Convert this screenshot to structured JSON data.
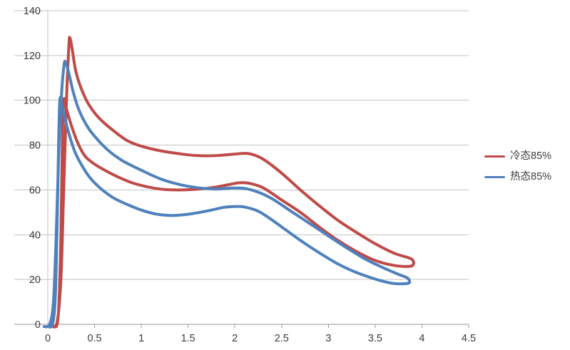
{
  "chart_data": {
    "type": "line",
    "title": "",
    "xlabel": "",
    "ylabel": "",
    "grid": "horizontal",
    "legend_position": "right",
    "x_axis": {
      "min": 0,
      "max": 4.5,
      "tick_step": 0.5,
      "tick_labels": [
        "0",
        "0.5",
        "1",
        "1.5",
        "2",
        "2.5",
        "3",
        "3.5",
        "4",
        "4.5"
      ]
    },
    "y_axis": {
      "min": 0,
      "max": 140,
      "tick_step": 20,
      "tick_labels": [
        "0",
        "20",
        "40",
        "60",
        "80",
        "100",
        "120",
        "140"
      ]
    },
    "colors": {
      "gridline": "#c3c3c3",
      "axis": "#9a9a9a",
      "tick_text": "#3a3a3a"
    },
    "series": [
      {
        "name": "冷态85%",
        "color": "#be4b48",
        "shape": "closed-loop",
        "points": [
          [
            0.05,
            -1
          ],
          [
            0.1,
            1
          ],
          [
            0.14,
            20
          ],
          [
            0.17,
            60
          ],
          [
            0.2,
            100
          ],
          [
            0.225,
            124
          ],
          [
            0.235,
            128
          ],
          [
            0.26,
            123
          ],
          [
            0.3,
            113
          ],
          [
            0.36,
            105
          ],
          [
            0.44,
            98
          ],
          [
            0.55,
            92
          ],
          [
            0.7,
            86.5
          ],
          [
            0.85,
            82
          ],
          [
            1.0,
            79.5
          ],
          [
            1.2,
            77.5
          ],
          [
            1.4,
            76.2
          ],
          [
            1.6,
            75.3
          ],
          [
            1.8,
            75.3
          ],
          [
            2.0,
            76
          ],
          [
            2.15,
            76.2
          ],
          [
            2.3,
            73.8
          ],
          [
            2.5,
            67.5
          ],
          [
            2.7,
            60
          ],
          [
            2.9,
            53
          ],
          [
            3.1,
            46.5
          ],
          [
            3.3,
            41
          ],
          [
            3.5,
            36
          ],
          [
            3.7,
            31.8
          ],
          [
            3.85,
            29.8
          ],
          [
            3.9,
            28.8
          ],
          [
            3.91,
            27
          ],
          [
            3.87,
            25.9
          ],
          [
            3.7,
            26.3
          ],
          [
            3.5,
            28.5
          ],
          [
            3.3,
            32.5
          ],
          [
            3.1,
            37.5
          ],
          [
            2.9,
            43.5
          ],
          [
            2.7,
            50
          ],
          [
            2.5,
            55.5
          ],
          [
            2.3,
            61
          ],
          [
            2.15,
            63
          ],
          [
            2.05,
            63.2
          ],
          [
            1.95,
            62.5
          ],
          [
            1.8,
            61.3
          ],
          [
            1.65,
            60.5
          ],
          [
            1.5,
            60.1
          ],
          [
            1.35,
            60
          ],
          [
            1.2,
            60.4
          ],
          [
            1.05,
            61.5
          ],
          [
            0.9,
            63.2
          ],
          [
            0.75,
            65.8
          ],
          [
            0.6,
            69
          ],
          [
            0.5,
            71.5
          ],
          [
            0.4,
            75
          ],
          [
            0.32,
            81
          ],
          [
            0.25,
            89
          ],
          [
            0.2,
            96
          ],
          [
            0.17,
            100
          ],
          [
            0.155,
            80
          ],
          [
            0.14,
            40
          ],
          [
            0.12,
            10
          ],
          [
            0.1,
            0
          ],
          [
            0.07,
            -1
          ]
        ]
      },
      {
        "name": "热态85%",
        "color": "#4f81bd",
        "shape": "closed-loop",
        "points": [
          [
            -0.04,
            -1
          ],
          [
            0.02,
            0
          ],
          [
            0.06,
            10
          ],
          [
            0.09,
            40
          ],
          [
            0.12,
            80
          ],
          [
            0.15,
            105
          ],
          [
            0.175,
            116
          ],
          [
            0.19,
            117
          ],
          [
            0.22,
            113
          ],
          [
            0.27,
            104
          ],
          [
            0.33,
            96
          ],
          [
            0.42,
            88.5
          ],
          [
            0.52,
            83
          ],
          [
            0.65,
            77.5
          ],
          [
            0.8,
            73
          ],
          [
            1.0,
            68.8
          ],
          [
            1.2,
            65
          ],
          [
            1.4,
            62.5
          ],
          [
            1.6,
            61
          ],
          [
            1.8,
            60.4
          ],
          [
            1.95,
            60.8
          ],
          [
            2.1,
            60.7
          ],
          [
            2.25,
            59
          ],
          [
            2.4,
            56
          ],
          [
            2.6,
            50.5
          ],
          [
            2.8,
            45
          ],
          [
            3.0,
            39.5
          ],
          [
            3.2,
            34
          ],
          [
            3.4,
            29
          ],
          [
            3.6,
            25
          ],
          [
            3.75,
            22.3
          ],
          [
            3.84,
            20.8
          ],
          [
            3.865,
            19.6
          ],
          [
            3.85,
            18.3
          ],
          [
            3.7,
            18.2
          ],
          [
            3.55,
            19.6
          ],
          [
            3.4,
            21.6
          ],
          [
            3.25,
            24
          ],
          [
            3.1,
            27
          ],
          [
            2.9,
            32
          ],
          [
            2.7,
            37.5
          ],
          [
            2.55,
            42
          ],
          [
            2.4,
            46.5
          ],
          [
            2.25,
            50.5
          ],
          [
            2.1,
            52.4
          ],
          [
            2.0,
            52.6
          ],
          [
            1.88,
            52.2
          ],
          [
            1.75,
            51
          ],
          [
            1.6,
            49.8
          ],
          [
            1.45,
            48.9
          ],
          [
            1.3,
            48.6
          ],
          [
            1.15,
            49.3
          ],
          [
            1.0,
            51
          ],
          [
            0.85,
            53.5
          ],
          [
            0.7,
            56.5
          ],
          [
            0.57,
            60.5
          ],
          [
            0.46,
            65
          ],
          [
            0.37,
            70.5
          ],
          [
            0.29,
            77
          ],
          [
            0.22,
            86
          ],
          [
            0.16,
            96
          ],
          [
            0.13,
            100.5
          ],
          [
            0.115,
            80
          ],
          [
            0.1,
            45
          ],
          [
            0.08,
            12
          ],
          [
            0.05,
            0
          ],
          [
            0.0,
            -1
          ]
        ]
      }
    ]
  }
}
